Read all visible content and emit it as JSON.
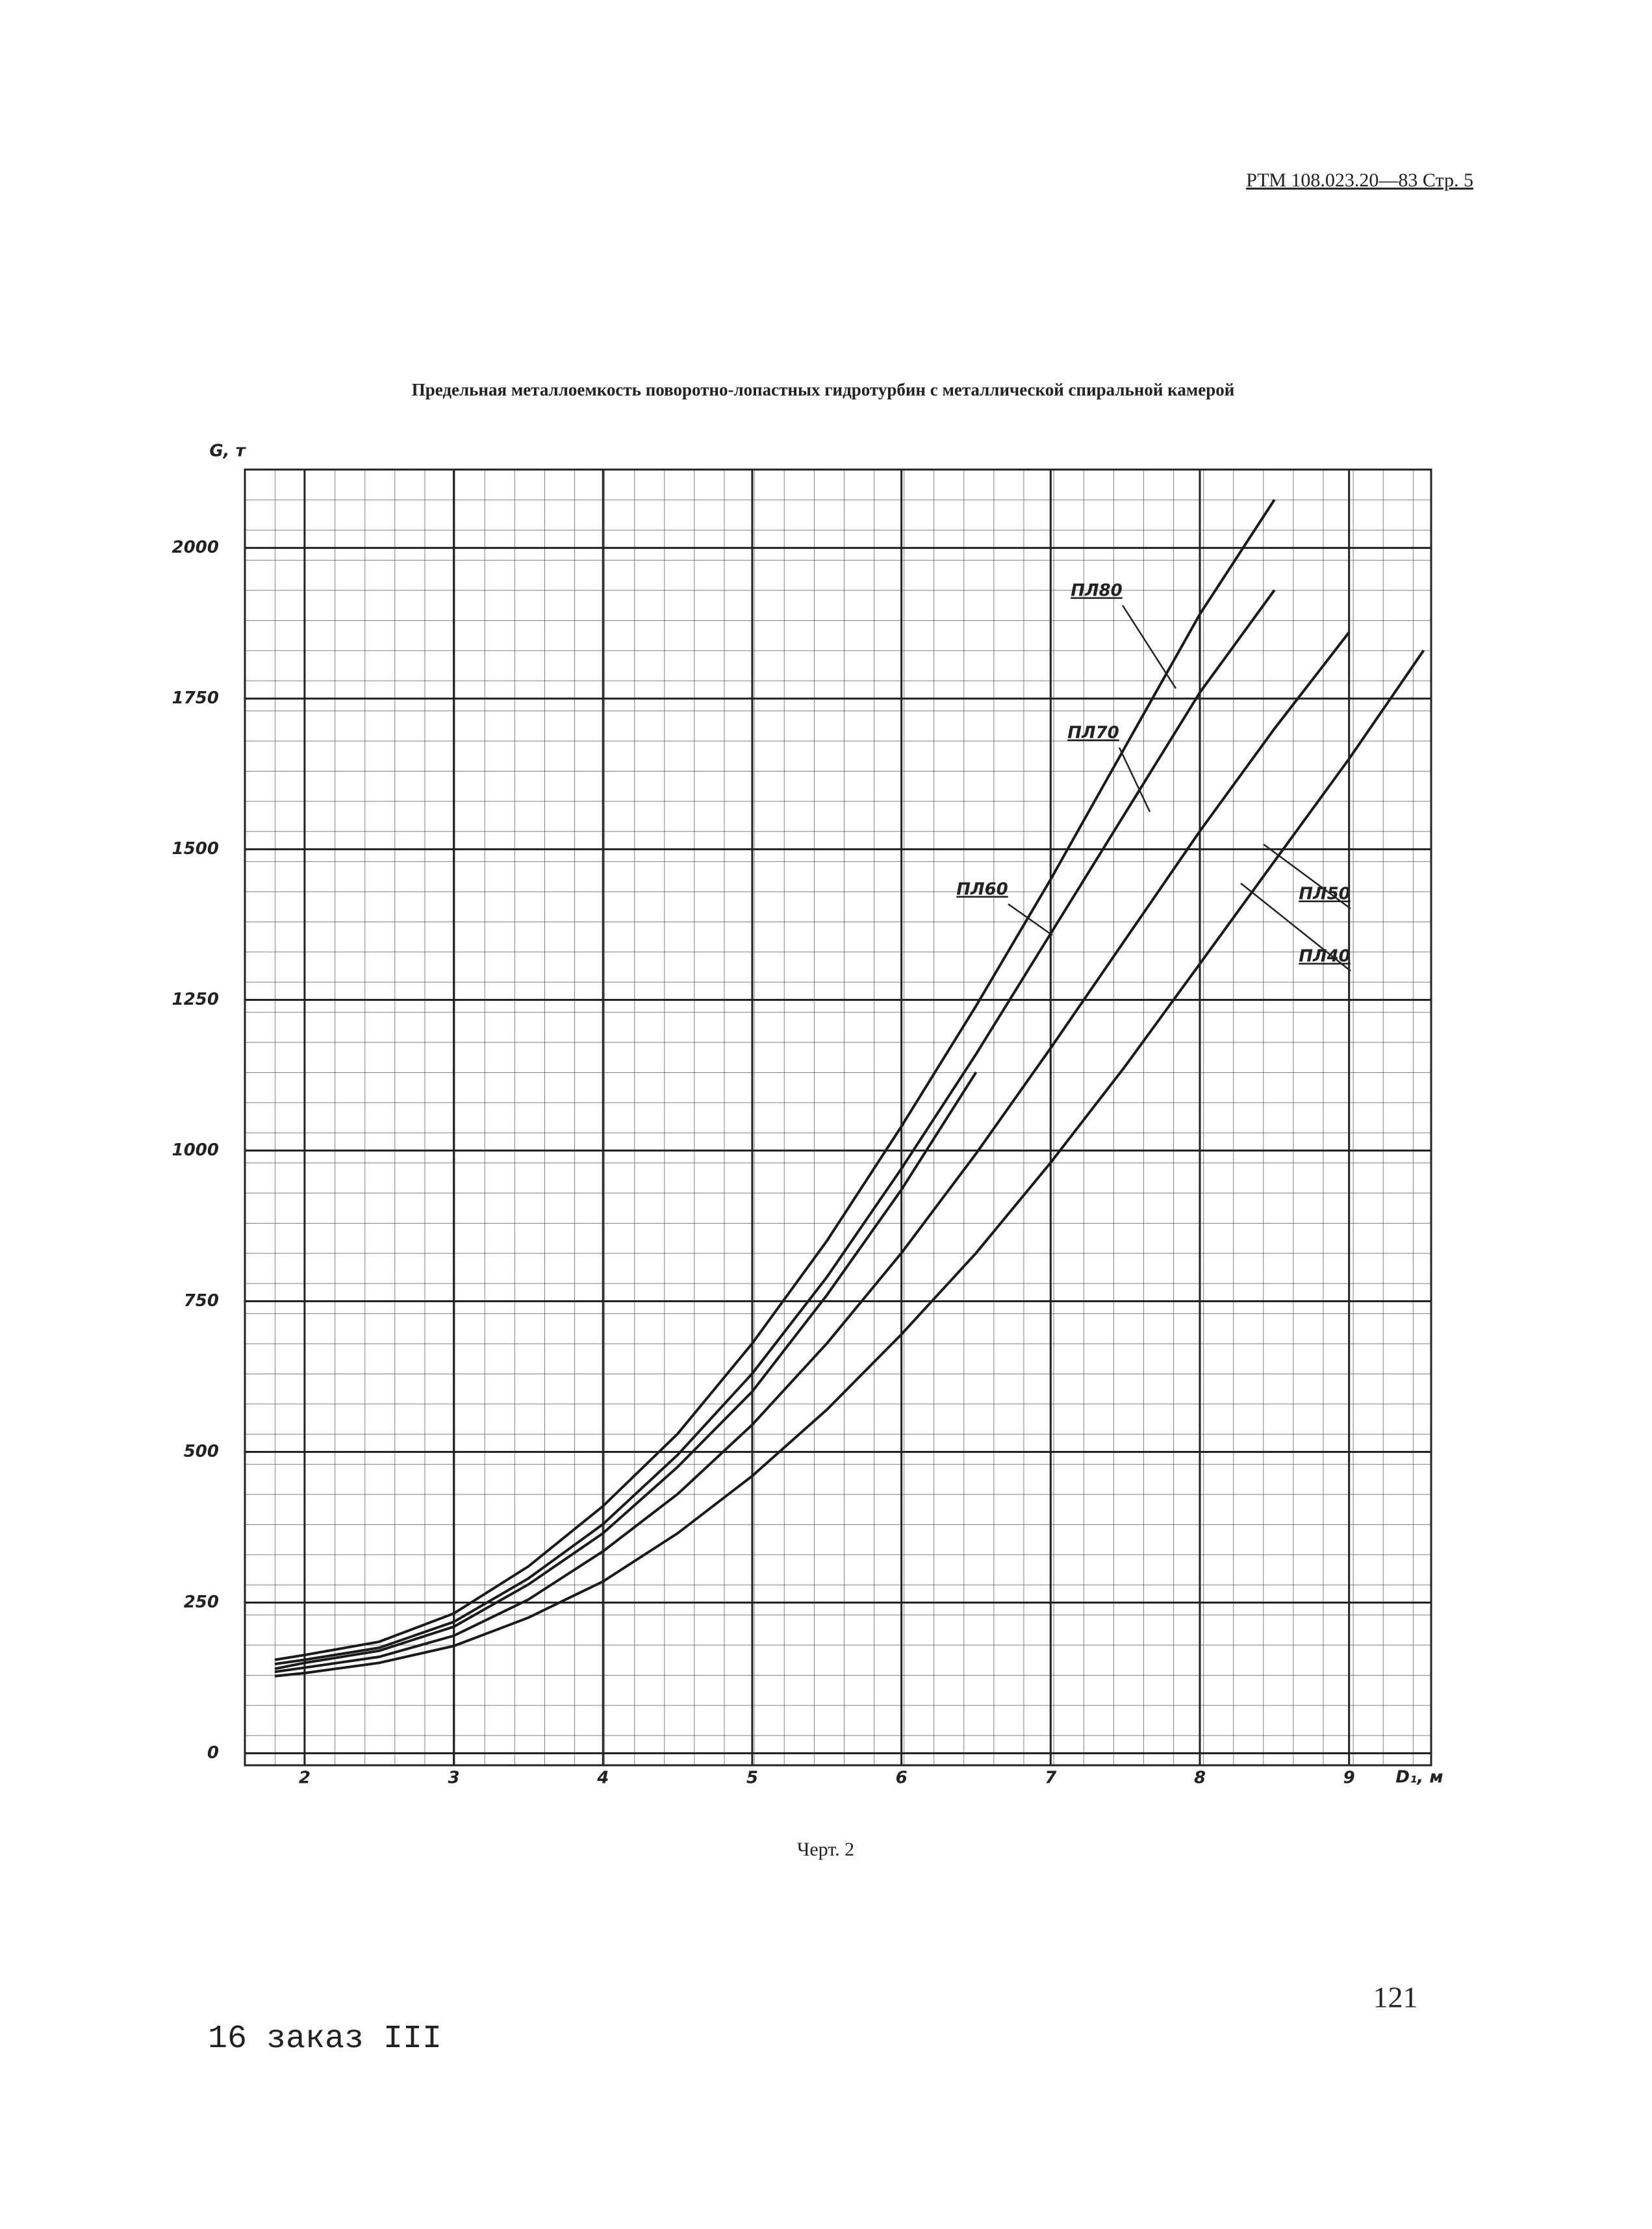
{
  "header": "РТМ 108.023.20—83  Стр. 5",
  "chart_data": {
    "type": "line",
    "title": "Предельная металлоемкость поворотно-лопастных гидротурбин с металлической спиральной камерой",
    "y_label": "G, т",
    "x_label": "D₁, м",
    "x": [
      1.8,
      2,
      2.5,
      3,
      3.5,
      4,
      4.5,
      5,
      5.5,
      6,
      6.5,
      7,
      7.5,
      8,
      8.5,
      9,
      9.5
    ],
    "series": [
      {
        "name": "ПЛ80",
        "color": "#1a1a1a",
        "values": [
          155,
          163,
          185,
          232,
          310,
          410,
          530,
          680,
          850,
          1040,
          1240,
          1450,
          1670,
          1890,
          2080,
          null,
          null
        ]
      },
      {
        "name": "ПЛ70",
        "color": "#1a1a1a",
        "values": [
          148,
          155,
          175,
          218,
          290,
          380,
          495,
          630,
          790,
          970,
          1160,
          1360,
          1560,
          1760,
          1930,
          null,
          null
        ]
      },
      {
        "name": "ПЛ60",
        "color": "#1a1a1a",
        "values": [
          140,
          150,
          170,
          210,
          280,
          365,
          475,
          600,
          760,
          935,
          1130,
          null,
          null,
          null,
          null,
          null,
          null
        ]
      },
      {
        "name": "ПЛ50",
        "color": "#1a1a1a",
        "values": [
          135,
          142,
          160,
          195,
          255,
          335,
          430,
          545,
          680,
          830,
          995,
          1170,
          1350,
          1530,
          1700,
          1860,
          null
        ]
      },
      {
        "name": "ПЛ40",
        "color": "#1a1a1a",
        "values": [
          128,
          133,
          150,
          178,
          225,
          285,
          365,
          460,
          570,
          695,
          830,
          980,
          1140,
          1310,
          1480,
          1650,
          1830
        ]
      }
    ],
    "xlim": [
      1.6,
      9.55
    ],
    "ylim": [
      -20,
      2130
    ],
    "xticks": [
      2,
      3,
      4,
      5,
      6,
      7,
      8,
      9
    ],
    "yticks": [
      0,
      250,
      500,
      750,
      1000,
      1250,
      1500,
      1750,
      2000
    ],
    "grid": true
  },
  "caption": "Черт. 2",
  "page_number": "121",
  "footer": "16 заказ III"
}
